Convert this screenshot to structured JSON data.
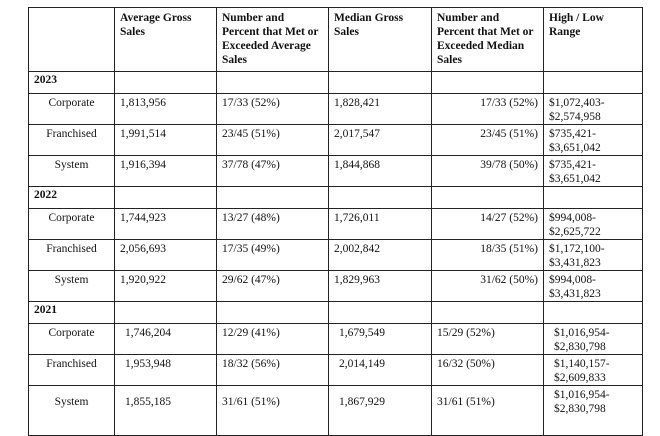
{
  "headers": [
    "",
    "Average Gross Sales",
    "Number and Percent that Met or Exceeded Average Sales",
    "Median Gross Sales",
    "Number and Percent that Met or Exceeded Median Sales",
    "High / Low Range"
  ],
  "years": [
    {
      "year": "2023",
      "rows": [
        {
          "label": "Corporate",
          "avg": "1,813,956",
          "met_avg": "17/33 (52%)",
          "median": "1,828,421",
          "met_median": "17/33 (52%)",
          "range_high": "$1,072,403-",
          "range_low": "$2,574,958"
        },
        {
          "label": "Franchised",
          "avg": "1,991,514",
          "met_avg": "23/45 (51%)",
          "median": "2,017,547",
          "met_median": "23/45 (51%)",
          "range_high": "$735,421-",
          "range_low": "$3,651,042"
        },
        {
          "label": "System",
          "avg": "1,916,394",
          "met_avg": "37/78 (47%)",
          "median": "1,844,868",
          "met_median": "39/78 (50%)",
          "range_high": "$735,421-",
          "range_low": "$3,651,042"
        }
      ]
    },
    {
      "year": "2022",
      "rows": [
        {
          "label": "Corporate",
          "avg": "1,744,923",
          "met_avg": "13/27 (48%)",
          "median": "1,726,011",
          "met_median": "14/27 (52%)",
          "range_high": "$994,008-",
          "range_low": "$2,625,722"
        },
        {
          "label": "Franchised",
          "avg": "2,056,693",
          "met_avg": "17/35 (49%)",
          "median": "2,002,842",
          "met_median": "18/35 (51%)",
          "range_high": "$1,172,100-",
          "range_low": "$3,431,823"
        },
        {
          "label": "System",
          "avg": "1,920,922",
          "met_avg": "29/62 (47%)",
          "median": "1,829,963",
          "met_median": "31/62 (50%)",
          "range_high": "$994,008-",
          "range_low": "$3,431,823"
        }
      ]
    },
    {
      "year": "2021",
      "rows": [
        {
          "label": "Corporate",
          "avg": "1,746,204",
          "met_avg": "12/29 (41%)",
          "median": "1,679,549",
          "met_median": "15/29 (52%)",
          "range_high": "$1,016,954-",
          "range_low": "$2,830,798"
        },
        {
          "label": "Franchised",
          "avg": "1,953,948",
          "met_avg": "18/32 (56%)",
          "median": "2,014,149",
          "met_median": "16/32 (50%)",
          "range_high": "$1,140,157-",
          "range_low": "$2,609,833"
        },
        {
          "label": "System",
          "avg": "1,855,185",
          "met_avg": "31/61 (51%)",
          "median": "1,867,929",
          "met_median": "31/61 (51%)",
          "range_high": "$1,016,954-",
          "range_low": "$2,830,798"
        }
      ]
    }
  ]
}
